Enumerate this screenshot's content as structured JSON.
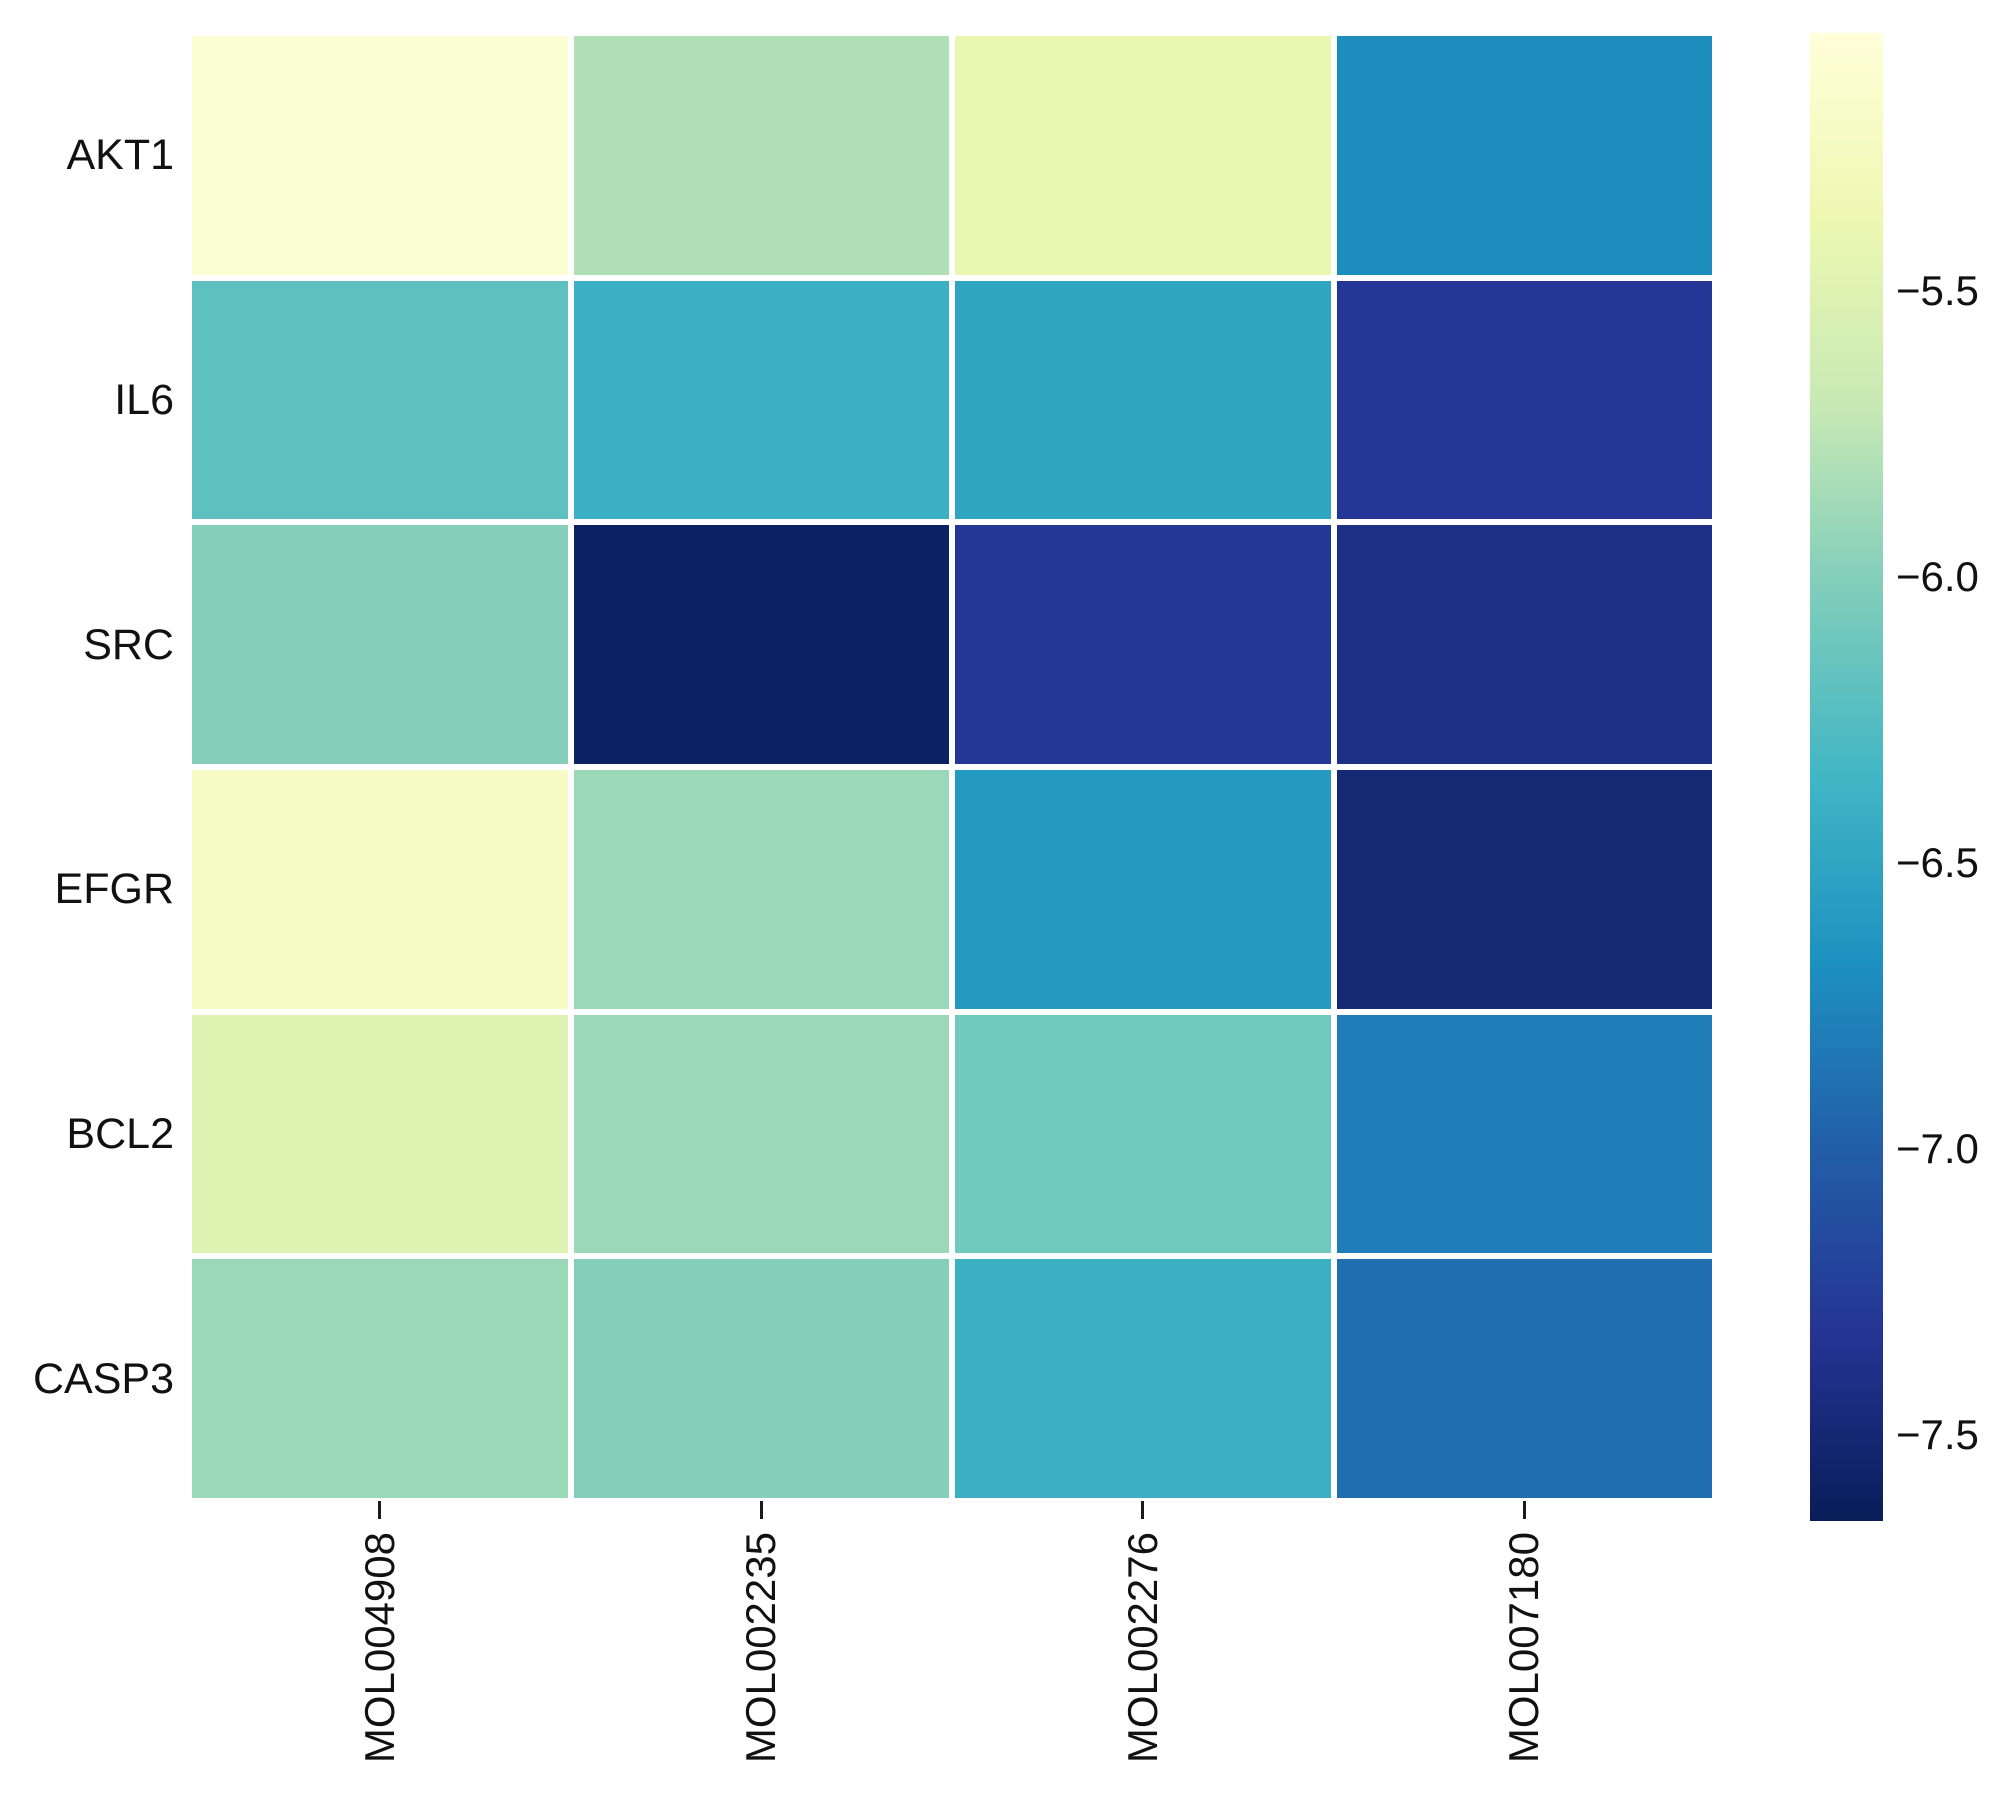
{
  "figure": {
    "background": "#ffffff",
    "text_color": "#111111"
  },
  "chart_data": {
    "type": "heatmap",
    "title": "",
    "xlabel": "",
    "ylabel": "",
    "rows": [
      "AKT1",
      "IL6",
      "SRC",
      "EFGR",
      "BCL2",
      "CASP3"
    ],
    "columns": [
      "MOL004908",
      "MOL002235",
      "MOL002276",
      "MOL007180"
    ],
    "values": [
      [
        -5.1,
        -5.8,
        -5.4,
        -6.7
      ],
      [
        -6.2,
        -6.4,
        -6.5,
        -7.3
      ],
      [
        -6.0,
        -7.6,
        -7.3,
        -7.4
      ],
      [
        -5.2,
        -5.9,
        -6.6,
        -7.5
      ],
      [
        -5.5,
        -5.9,
        -6.1,
        -6.8
      ],
      [
        -5.9,
        -6.0,
        -6.4,
        -6.9
      ]
    ],
    "scale": {
      "vmax": -5.05,
      "vmin": -7.65
    },
    "colormap": {
      "name": "YlGnBu",
      "stops": [
        "#ffffd9",
        "#edf8b1",
        "#c7e9b4",
        "#7fcdbb",
        "#41b6c4",
        "#1d91c0",
        "#225ea8",
        "#253494",
        "#081d58"
      ]
    },
    "grid_gap_color": "#ffffff",
    "legend_position": "right",
    "colorbar_ticks": [
      {
        "label": "−5.5",
        "value": -5.5
      },
      {
        "label": "−6.0",
        "value": -6.0
      },
      {
        "label": "−6.5",
        "value": -6.5
      },
      {
        "label": "−7.0",
        "value": -7.0
      },
      {
        "label": "−7.5",
        "value": -7.5
      }
    ]
  }
}
